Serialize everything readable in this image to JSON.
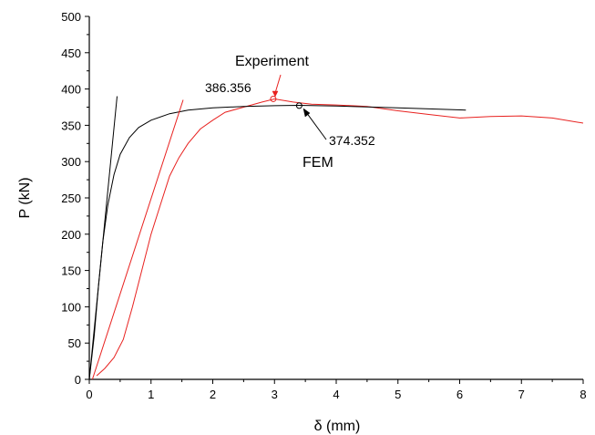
{
  "chart_data": {
    "type": "line",
    "title": "",
    "xlabel": "δ (mm)",
    "ylabel": "P (kN)",
    "xlim": [
      0,
      8
    ],
    "ylim": [
      0,
      500
    ],
    "xticks": [
      0,
      1,
      2,
      3,
      4,
      5,
      6,
      7,
      8
    ],
    "yticks": [
      0,
      50,
      100,
      150,
      200,
      250,
      300,
      350,
      400,
      450,
      500
    ],
    "grid": false,
    "legend": "none",
    "series": [
      {
        "color": "#e8211f",
        "points": [
          [
            0.12,
            5
          ],
          [
            0.25,
            15
          ],
          [
            0.4,
            30
          ],
          [
            0.55,
            55
          ],
          [
            0.7,
            100
          ],
          [
            0.85,
            150
          ],
          [
            1.0,
            200
          ],
          [
            1.15,
            240
          ],
          [
            1.3,
            280
          ],
          [
            1.45,
            305
          ],
          [
            1.6,
            325
          ],
          [
            1.8,
            345
          ],
          [
            2.0,
            357
          ],
          [
            2.2,
            368
          ],
          [
            2.5,
            375
          ],
          [
            2.8,
            382
          ],
          [
            3.0,
            386.356
          ],
          [
            3.3,
            382
          ],
          [
            3.6,
            379
          ],
          [
            4.0,
            378
          ],
          [
            4.5,
            376
          ],
          [
            5.0,
            370
          ],
          [
            5.5,
            365
          ],
          [
            6.0,
            360
          ],
          [
            6.5,
            362
          ],
          [
            7.0,
            363
          ],
          [
            7.5,
            360
          ],
          [
            8.0,
            353
          ]
        ]
      },
      {
        "color": "#000000",
        "points": [
          [
            0.0,
            0
          ],
          [
            0.08,
            60
          ],
          [
            0.15,
            130
          ],
          [
            0.22,
            190
          ],
          [
            0.3,
            240
          ],
          [
            0.4,
            282
          ],
          [
            0.5,
            310
          ],
          [
            0.65,
            333
          ],
          [
            0.8,
            347
          ],
          [
            1.0,
            357
          ],
          [
            1.3,
            366
          ],
          [
            1.6,
            371
          ],
          [
            2.0,
            374
          ],
          [
            2.5,
            376
          ],
          [
            3.0,
            377
          ],
          [
            3.4,
            377.5
          ],
          [
            4.0,
            376.5
          ],
          [
            5.0,
            374
          ],
          [
            6.1,
            371
          ]
        ]
      },
      {
        "color": "#e8211f",
        "points": [
          [
            0.05,
            0
          ],
          [
            1.52,
            385
          ]
        ]
      },
      {
        "color": "#000000",
        "points": [
          [
            0.0,
            0
          ],
          [
            0.45,
            390
          ]
        ]
      }
    ],
    "markers": [
      {
        "color": "#e8211f",
        "x": 2.98,
        "y": 386.356
      },
      {
        "color": "#000000",
        "x": 3.4,
        "y": 377
      }
    ],
    "annotations": [
      {
        "text": "Experiment",
        "color": "#000000"
      },
      {
        "text": "386.356",
        "color": "#000000"
      },
      {
        "text": "374.352",
        "color": "#000000"
      },
      {
        "text": "FEM",
        "color": "#000000"
      }
    ]
  }
}
